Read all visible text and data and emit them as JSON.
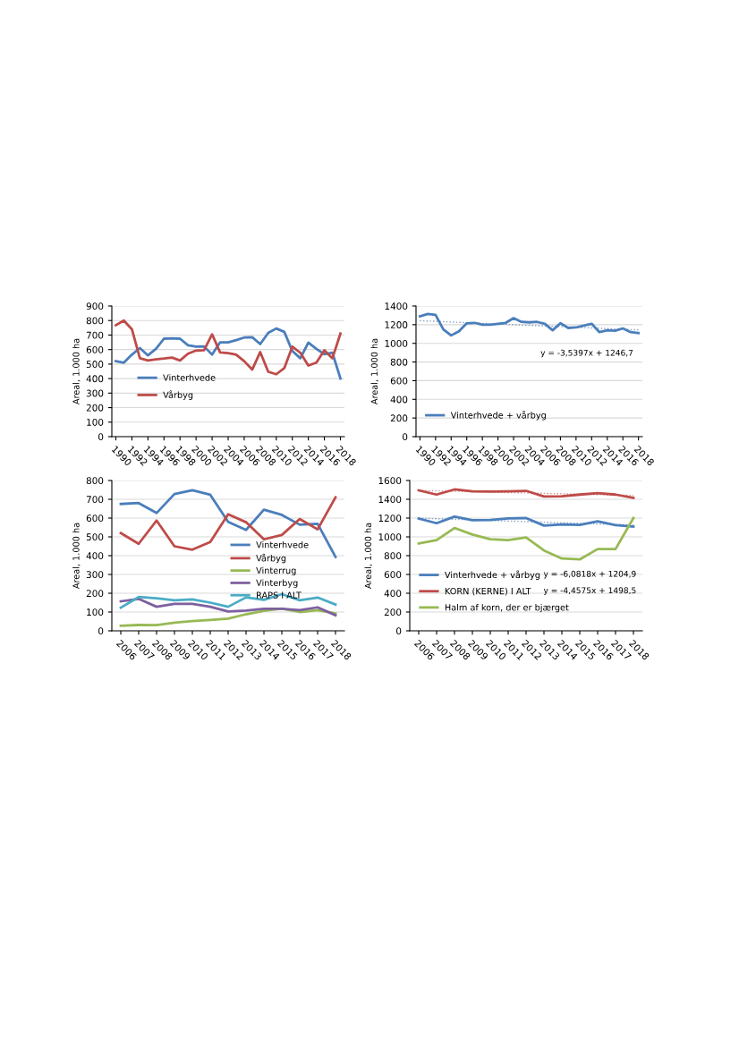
{
  "chart_data": [
    {
      "type": "line",
      "ylabel": "Areal, 1.000 ha",
      "x": [
        1990,
        1991,
        1992,
        1993,
        1994,
        1995,
        1996,
        1997,
        1998,
        1999,
        2000,
        2001,
        2002,
        2003,
        2004,
        2005,
        2006,
        2007,
        2008,
        2009,
        2010,
        2011,
        2012,
        2013,
        2014,
        2015,
        2016,
        2017,
        2018
      ],
      "xlim": [
        1989.5,
        2018.5
      ],
      "xticks": [
        1990,
        1992,
        1994,
        1996,
        1998,
        2000,
        2002,
        2004,
        2006,
        2008,
        2010,
        2012,
        2014,
        2016,
        2018
      ],
      "ylim": [
        0,
        900
      ],
      "yticks": [
        0,
        100,
        200,
        300,
        400,
        500,
        600,
        700,
        800,
        900
      ],
      "grid": "y",
      "legend": "center left",
      "marker": "none",
      "line_style": "solid",
      "series": [
        {
          "name": "Vinterhvede",
          "color": "#4a7ebb",
          "values": [
            520,
            510,
            565,
            610,
            560,
            605,
            675,
            678,
            675,
            630,
            620,
            622,
            565,
            650,
            650,
            665,
            683,
            685,
            638,
            715,
            745,
            722,
            590,
            540,
            648,
            605,
            568,
            578,
            400
          ]
        },
        {
          "name": "Vårbyg",
          "color": "#be4b48",
          "values": [
            768,
            800,
            740,
            540,
            525,
            533,
            538,
            545,
            525,
            572,
            593,
            595,
            705,
            580,
            575,
            565,
            520,
            462,
            583,
            447,
            430,
            472,
            620,
            578,
            490,
            510,
            595,
            540,
            710
          ]
        }
      ]
    },
    {
      "type": "line",
      "ylabel": "Areal, 1.000 ha",
      "x": [
        1990,
        1991,
        1992,
        1993,
        1994,
        1995,
        1996,
        1997,
        1998,
        1999,
        2000,
        2001,
        2002,
        2003,
        2004,
        2005,
        2006,
        2007,
        2008,
        2009,
        2010,
        2011,
        2012,
        2013,
        2014,
        2015,
        2016,
        2017,
        2018
      ],
      "xlim": [
        1989.5,
        2018.5
      ],
      "xticks": [
        1990,
        1992,
        1994,
        1996,
        1998,
        2000,
        2002,
        2004,
        2006,
        2008,
        2010,
        2012,
        2014,
        2016,
        2018
      ],
      "ylim": [
        0,
        1400
      ],
      "yticks": [
        0,
        200,
        400,
        600,
        800,
        1000,
        1200,
        1400
      ],
      "grid": "y",
      "legend": "lower left",
      "marker": "none",
      "line_style": "solid",
      "annotations": [
        "y = -3,5397x + 1246,7"
      ],
      "series": [
        {
          "name": "Vinterhvede + vårbyg",
          "color": "#4a7ebb",
          "values": [
            1290,
            1315,
            1305,
            1150,
            1085,
            1130,
            1215,
            1220,
            1200,
            1200,
            1210,
            1220,
            1270,
            1230,
            1225,
            1230,
            1210,
            1140,
            1215,
            1165,
            1170,
            1190,
            1210,
            1120,
            1140,
            1135,
            1160,
            1120,
            1110
          ]
        },
        {
          "color": "#7f9cc4",
          "line_style": "dotted",
          "x": [
            1990,
            2018
          ],
          "values": [
            1243,
            1144
          ]
        }
      ]
    },
    {
      "type": "line",
      "ylabel": "Areal, 1.000 ha",
      "x": [
        2006,
        2007,
        2008,
        2009,
        2010,
        2011,
        2012,
        2013,
        2014,
        2015,
        2016,
        2017,
        2018
      ],
      "xlim": [
        2005.5,
        2018.5
      ],
      "xticks": [
        2006,
        2007,
        2008,
        2009,
        2010,
        2011,
        2012,
        2013,
        2014,
        2015,
        2016,
        2017,
        2018
      ],
      "ylim": [
        0,
        800
      ],
      "yticks": [
        0,
        100,
        200,
        300,
        400,
        500,
        600,
        700,
        800
      ],
      "grid": "y",
      "legend": "center",
      "marker": "none",
      "line_style": "solid",
      "series": [
        {
          "name": "Vinterhvede",
          "color": "#4a7ebb",
          "values": [
            675,
            680,
            627,
            728,
            748,
            724,
            580,
            537,
            645,
            617,
            565,
            570,
            393
          ]
        },
        {
          "name": "Vårbyg",
          "color": "#be4b48",
          "values": [
            520,
            463,
            587,
            450,
            432,
            473,
            620,
            578,
            487,
            510,
            595,
            540,
            710
          ]
        },
        {
          "name": "Vinterrug",
          "color": "#98b954",
          "values": [
            27,
            31,
            30,
            44,
            52,
            58,
            65,
            88,
            107,
            118,
            100,
            110,
            92
          ]
        },
        {
          "name": "Vinterbyg",
          "color": "#7d60a0",
          "values": [
            157,
            170,
            128,
            143,
            143,
            128,
            103,
            108,
            117,
            117,
            110,
            125,
            83
          ]
        },
        {
          "name": "RAPS I ALT",
          "color": "#4bacc6",
          "values": [
            123,
            180,
            173,
            163,
            167,
            150,
            128,
            178,
            165,
            195,
            162,
            177,
            140
          ]
        }
      ]
    },
    {
      "type": "line",
      "ylabel": "Areal, 1.000 ha",
      "x": [
        2006,
        2007,
        2008,
        2009,
        2010,
        2011,
        2012,
        2013,
        2014,
        2015,
        2016,
        2017,
        2018
      ],
      "xlim": [
        2005.5,
        2018.5
      ],
      "xticks": [
        2006,
        2007,
        2008,
        2009,
        2010,
        2011,
        2012,
        2013,
        2014,
        2015,
        2016,
        2017,
        2018
      ],
      "ylim": [
        0,
        1600
      ],
      "yticks": [
        0,
        200,
        400,
        600,
        800,
        1000,
        1200,
        1400,
        1600
      ],
      "grid": "y",
      "legend": "lower left",
      "marker": "none",
      "line_style": "solid",
      "annotations": [
        "y = -6,0818x + 1204,9",
        "y = -4,4575x + 1498,5"
      ],
      "series": [
        {
          "name": "Vinterhvede + vårbyg",
          "color": "#4a7ebb",
          "values": [
            1195,
            1145,
            1215,
            1178,
            1180,
            1197,
            1200,
            1120,
            1133,
            1128,
            1165,
            1125,
            1110
          ]
        },
        {
          "name": "KORN (KERNE) I ALT",
          "color": "#be4b48",
          "values": [
            1495,
            1450,
            1505,
            1485,
            1483,
            1485,
            1490,
            1430,
            1433,
            1450,
            1465,
            1450,
            1415
          ]
        },
        {
          "name": "Halm af korn, der er bjærget",
          "color": "#98b954",
          "values": [
            930,
            965,
            1095,
            1025,
            975,
            965,
            995,
            855,
            770,
            760,
            870,
            870,
            1200
          ]
        },
        {
          "color": "#7f9cc4",
          "line_style": "dotted",
          "x": [
            2006,
            2018
          ],
          "values": [
            1199,
            1126
          ]
        },
        {
          "color": "#d08a88",
          "line_style": "dotted",
          "x": [
            2006,
            2018
          ],
          "values": [
            1494,
            1441
          ]
        }
      ]
    }
  ]
}
